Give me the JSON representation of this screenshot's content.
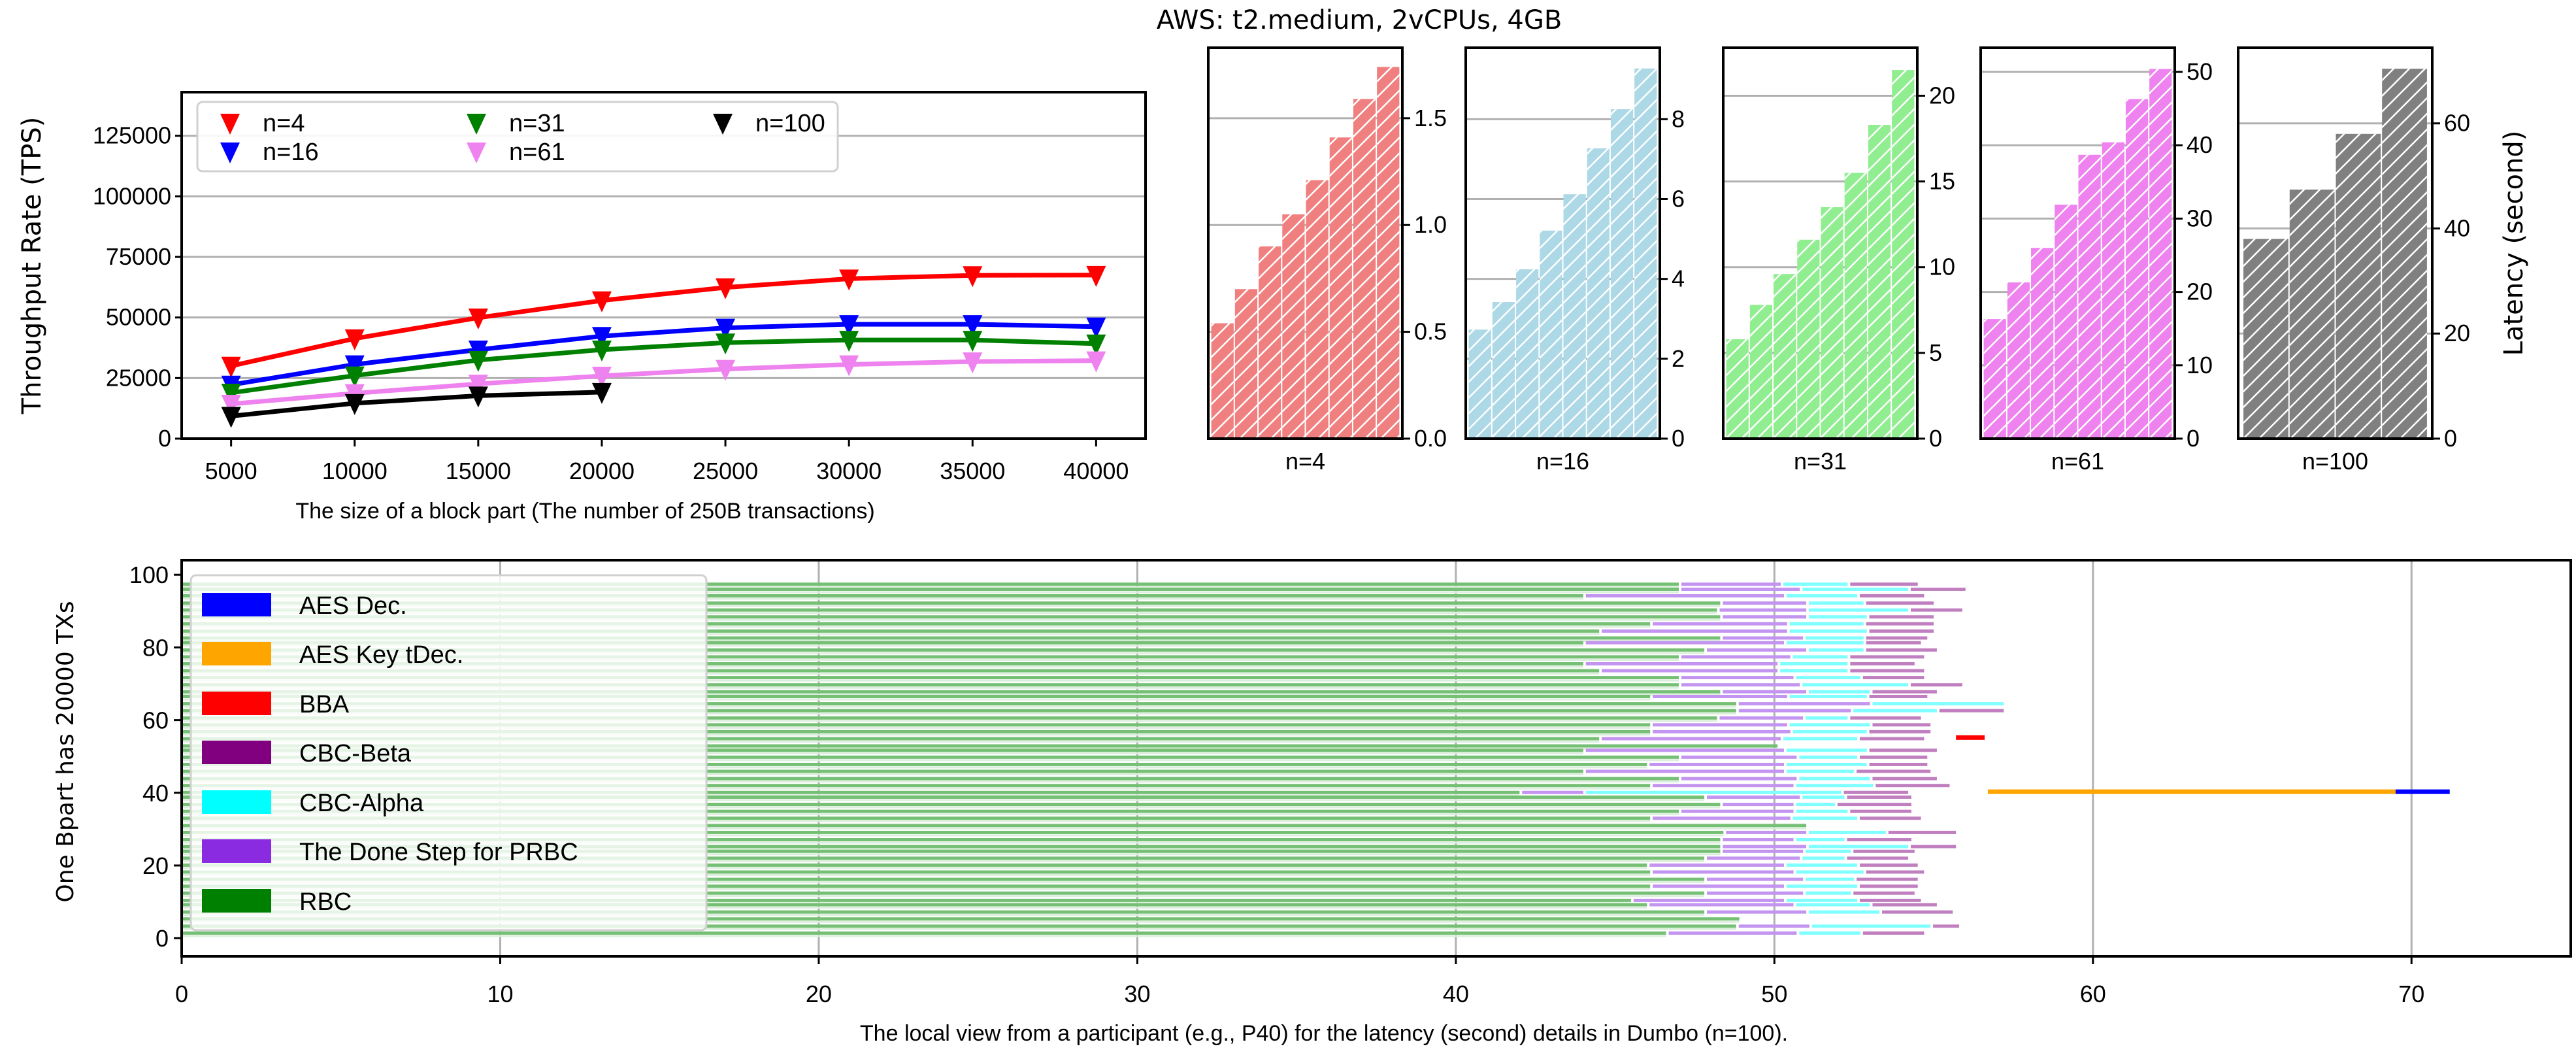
{
  "title": "AWS: t2.medium, 2vCPUs, 4GB",
  "chart_data": [
    {
      "type": "line",
      "xlabel": "The size of a block part (The number of 250B transactions)",
      "ylabel": "Throughput Rate (TPS)",
      "xlim": [
        3000,
        42000
      ],
      "ylim": [
        0,
        143000
      ],
      "xticks": [
        5000,
        10000,
        15000,
        20000,
        25000,
        30000,
        35000,
        40000
      ],
      "yticks": [
        0,
        25000,
        50000,
        75000,
        100000,
        125000
      ],
      "grid": "horizontal",
      "legend_position": "top-left",
      "marker": "triangle-down",
      "series": [
        {
          "name": "n=4",
          "color": "#ff0000",
          "x": [
            5000,
            10000,
            15000,
            20000,
            25000,
            30000,
            35000,
            40000
          ],
          "values": [
            30000,
            41300,
            49900,
            57000,
            62400,
            66000,
            67400,
            67500
          ]
        },
        {
          "name": "n=16",
          "color": "#0000ff",
          "x": [
            5000,
            10000,
            15000,
            20000,
            25000,
            30000,
            35000,
            40000
          ],
          "values": [
            22200,
            30600,
            36700,
            42300,
            45700,
            47200,
            47200,
            46200
          ]
        },
        {
          "name": "n=31",
          "color": "#008000",
          "x": [
            5000,
            10000,
            15000,
            20000,
            25000,
            30000,
            35000,
            40000
          ],
          "values": [
            18900,
            26000,
            32400,
            36700,
            39600,
            40700,
            40700,
            39200
          ]
        },
        {
          "name": "n=61",
          "color": "#ee82ee",
          "x": [
            5000,
            10000,
            15000,
            20000,
            25000,
            30000,
            35000,
            40000
          ],
          "values": [
            14300,
            18700,
            22600,
            25900,
            28700,
            30600,
            31800,
            32200
          ]
        },
        {
          "name": "n=100",
          "color": "#000000",
          "x": [
            5000,
            10000,
            15000,
            20000
          ],
          "values": [
            9300,
            14600,
            17700,
            19200
          ]
        }
      ]
    },
    {
      "type": "bar",
      "ylabel": "Latency (second)",
      "hatch": "/",
      "grid": "horizontal",
      "panels": [
        {
          "label": "n=4",
          "color": "#f08080",
          "ylim": [
            0,
            1.83
          ],
          "yticks": [
            0,
            0.5,
            1.0,
            1.5
          ],
          "ytick_labels": [
            "0.0",
            "0.5",
            "1.0",
            "1.5"
          ],
          "values": [
            0.54,
            0.7,
            0.9,
            1.05,
            1.21,
            1.41,
            1.59,
            1.74
          ]
        },
        {
          "label": "n=16",
          "color": "#add8e6",
          "ylim": [
            0,
            9.79
          ],
          "yticks": [
            0,
            2,
            4,
            6,
            8
          ],
          "ytick_labels": [
            "0",
            "2",
            "4",
            "6",
            "8"
          ],
          "values": [
            2.73,
            3.42,
            4.24,
            5.21,
            6.12,
            7.27,
            8.25,
            9.27
          ]
        },
        {
          "label": "n=31",
          "color": "#90ee90",
          "ylim": [
            0,
            22.8
          ],
          "yticks": [
            0,
            5,
            10,
            15,
            20
          ],
          "ytick_labels": [
            "0",
            "5",
            "10",
            "15",
            "20"
          ],
          "values": [
            5.8,
            7.8,
            9.6,
            11.6,
            13.5,
            15.5,
            18.3,
            21.5
          ]
        },
        {
          "label": "n=61",
          "color": "#ee82ee",
          "ylim": [
            0,
            53.3
          ],
          "yticks": [
            0,
            10,
            20,
            30,
            40,
            50
          ],
          "ytick_labels": [
            "0",
            "10",
            "20",
            "30",
            "40",
            "50"
          ],
          "values": [
            16.3,
            21.3,
            26.0,
            31.9,
            38.7,
            40.4,
            46.3,
            50.4
          ]
        },
        {
          "label": "n=100",
          "color": "#808080",
          "ylim": [
            0,
            74.4
          ],
          "yticks": [
            0,
            20,
            40,
            60
          ],
          "ytick_labels": [
            "0",
            "20",
            "40",
            "60"
          ],
          "values": [
            38.0,
            47.4,
            58.0,
            70.4
          ]
        }
      ]
    },
    {
      "type": "timeline",
      "xlabel": "The local view from a participant (e.g., P40) for the latency (second) details in Dumbo (n=100).",
      "ylabel": "One Bpart has 20000 TXs",
      "xlim": [
        0,
        75
      ],
      "ylim": [
        -5,
        104
      ],
      "xticks": [
        0,
        10,
        20,
        30,
        40,
        50,
        60,
        70
      ],
      "yticks": [
        0,
        20,
        40,
        60,
        80,
        100
      ],
      "grid": "vertical",
      "legend_position": "left",
      "legend": [
        {
          "label": "AES Dec.",
          "color": "#0000ff"
        },
        {
          "label": "AES Key tDec.",
          "color": "#ffa500"
        },
        {
          "label": "BBA",
          "color": "#ff0000"
        },
        {
          "label": "CBC-Beta",
          "color": "#800080"
        },
        {
          "label": "CBC-Alpha",
          "color": "#00ffff"
        },
        {
          "label": "The Done Step for PRBC",
          "color": "#8a2be2"
        },
        {
          "label": "RBC",
          "color": "#008000"
        }
      ],
      "row_fields": [
        "y",
        "rbc_end",
        "prbc_done_end",
        "cbc_alpha_end",
        "cbc_beta_end"
      ],
      "rows": [
        [
          97.4,
          47.0,
          50.2,
          52.3,
          54.5
        ],
        [
          96.0,
          47.0,
          50.8,
          54.2,
          56.0
        ],
        [
          94.2,
          44.0,
          50.3,
          52.6,
          54.7
        ],
        [
          92.2,
          48.3,
          51.0,
          52.8,
          55.0
        ],
        [
          90.3,
          48.2,
          51.0,
          54.2,
          55.9
        ],
        [
          88.4,
          48.3,
          51.0,
          52.9,
          55.0
        ],
        [
          86.5,
          46.1,
          50.4,
          52.8,
          55.0
        ],
        [
          84.5,
          44.5,
          50.4,
          52.9,
          55.0
        ],
        [
          82.6,
          48.3,
          50.9,
          52.8,
          54.8
        ],
        [
          81.3,
          44.0,
          50.3,
          52.8,
          54.6
        ],
        [
          79.3,
          47.8,
          51.0,
          52.8,
          55.1
        ],
        [
          77.4,
          47.0,
          50.5,
          52.3,
          54.7
        ],
        [
          75.5,
          44.0,
          50.1,
          52.3,
          54.4
        ],
        [
          73.6,
          44.5,
          50.1,
          52.3,
          54.7
        ],
        [
          71.7,
          47.0,
          50.6,
          52.7,
          54.7
        ],
        [
          69.7,
          47.0,
          50.8,
          54.2,
          55.9
        ],
        [
          67.8,
          48.3,
          51.0,
          53.0,
          55.1
        ],
        [
          66.5,
          46.1,
          50.4,
          52.9,
          54.8
        ],
        [
          64.5,
          48.8,
          53.0,
          57.2,
          0
        ],
        [
          62.6,
          48.8,
          52.4,
          55.1,
          57.2
        ],
        [
          60.6,
          48.2,
          50.9,
          52.3,
          54.6
        ],
        [
          58.7,
          46.1,
          50.4,
          53.0,
          54.9
        ],
        [
          56.8,
          46.1,
          50.5,
          52.9,
          54.9
        ],
        [
          54.9,
          44.5,
          50.2,
          52.6,
          54.7
        ],
        [
          52.9,
          50.1,
          0,
          0,
          0
        ],
        [
          51.7,
          44.0,
          50.3,
          52.9,
          55.1
        ],
        [
          49.8,
          47.0,
          50.7,
          52.6,
          54.8
        ],
        [
          47.8,
          46.0,
          50.3,
          52.9,
          54.8
        ],
        [
          45.9,
          44.0,
          50.3,
          52.5,
          54.9
        ],
        [
          43.9,
          47.0,
          50.7,
          53.0,
          55.1
        ],
        [
          42.0,
          46.1,
          50.6,
          53.1,
          55.5
        ],
        [
          40.1,
          42.0,
          44.0,
          52.1,
          54.2
        ],
        [
          38.8,
          47.8,
          50.8,
          52.2,
          54.3
        ],
        [
          36.8,
          48.3,
          50.6,
          51.9,
          54.3
        ],
        [
          34.9,
          47.0,
          50.6,
          52.3,
          54.3
        ],
        [
          33.0,
          46.1,
          50.5,
          52.6,
          54.6
        ],
        [
          31.0,
          51.0,
          0,
          0,
          0
        ],
        [
          29.1,
          48.4,
          51.0,
          53.5,
          55.7
        ],
        [
          27.1,
          48.3,
          50.6,
          52.2,
          54.3
        ],
        [
          25.2,
          48.3,
          51.0,
          54.2,
          55.7
        ],
        [
          23.9,
          48.3,
          50.9,
          52.4,
          54.4
        ],
        [
          22.0,
          47.8,
          50.8,
          52.2,
          54.2
        ],
        [
          20.1,
          46.0,
          50.3,
          52.6,
          54.5
        ],
        [
          18.2,
          46.1,
          50.6,
          52.8,
          54.7
        ],
        [
          16.2,
          47.8,
          50.9,
          52.5,
          54.5
        ],
        [
          14.3,
          46.1,
          50.3,
          52.6,
          54.5
        ],
        [
          12.4,
          47.8,
          50.9,
          52.4,
          54.4
        ],
        [
          10.4,
          45.5,
          50.3,
          52.6,
          54.6
        ],
        [
          9.2,
          46.0,
          50.6,
          53.0,
          55.1
        ],
        [
          7.2,
          47.8,
          51.0,
          53.3,
          55.6
        ],
        [
          5.3,
          48.9,
          0,
          0,
          0
        ],
        [
          3.3,
          48.8,
          51.1,
          54.9,
          55.8
        ],
        [
          1.4,
          46.6,
          50.7,
          52.7,
          54.7
        ]
      ],
      "events": [
        {
          "phase": "BBA",
          "y": 55.2,
          "start": 55.7,
          "end": 56.6
        },
        {
          "phase": "AES Key tDec.",
          "y": 40.3,
          "start": 56.7,
          "end": 69.5
        },
        {
          "phase": "AES Dec.",
          "y": 40.3,
          "start": 69.5,
          "end": 71.2
        }
      ]
    }
  ]
}
